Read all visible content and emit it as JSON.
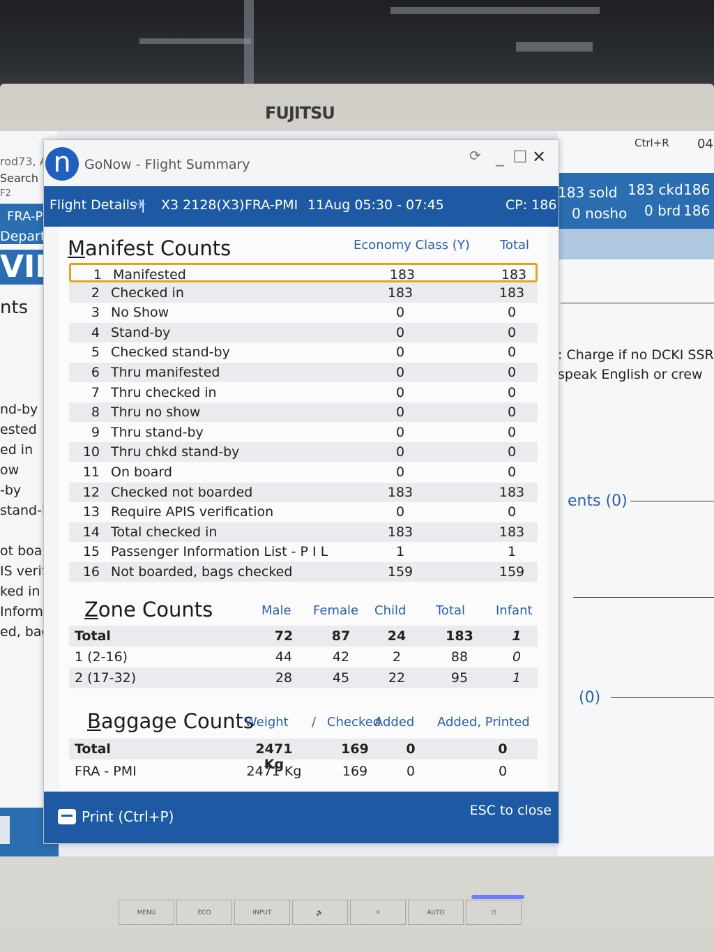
{
  "monitor": {
    "brand": "FUJITSU",
    "buttons": [
      "MENU",
      "ECO",
      "INPUT",
      "🔈",
      "☼",
      "AUTO",
      "⏻"
    ]
  },
  "background_app": {
    "left": {
      "top_text": "rod73, A",
      "search": "Search",
      "f2": "F2",
      "route": "FRA-P",
      "depart": "Depart",
      "big": "VIE",
      "nts": "nts",
      "lines": [
        "nd-by",
        "ested",
        "ed in",
        "ow",
        "-by",
        "stand-by",
        "",
        "ot boarde",
        "IS verific",
        "ked in",
        "Informat",
        "ed, bags c"
      ]
    },
    "right": {
      "ctrl_r": "Ctrl+R",
      "top_num": "04",
      "sold": "183 sold",
      "ckd": "183 ckd",
      "ckd_val": "186",
      "nosho": "0 nosho",
      "brd": "0 brd",
      "brd_val": "186",
      "note1": ": Charge if no DCKI SSR.",
      "note2": "speak English or crew",
      "link1": "ents (0)",
      "link2": "(0)"
    }
  },
  "dialog": {
    "logo": "n",
    "title": "GoNow - Flight Summary",
    "window_controls": [
      "⟳",
      "_",
      "☐",
      "✕"
    ],
    "header": {
      "label": "Flight Details |",
      "flight": "X3 2128(X3)",
      "route": "FRA-PMI",
      "date_time": "11Aug 05:30 - 07:45",
      "cp": "CP: 186"
    },
    "manifest": {
      "title": "Manifest Counts",
      "col1": "Economy Class (Y)",
      "col2": "Total",
      "rows": [
        {
          "n": "1",
          "label": "Manifested",
          "y": "183",
          "total": "183"
        },
        {
          "n": "2",
          "label": "Checked in",
          "y": "183",
          "total": "183"
        },
        {
          "n": "3",
          "label": "No Show",
          "y": "0",
          "total": "0"
        },
        {
          "n": "4",
          "label": "Stand-by",
          "y": "0",
          "total": "0"
        },
        {
          "n": "5",
          "label": "Checked stand-by",
          "y": "0",
          "total": "0"
        },
        {
          "n": "6",
          "label": "Thru manifested",
          "y": "0",
          "total": "0"
        },
        {
          "n": "7",
          "label": "Thru checked in",
          "y": "0",
          "total": "0"
        },
        {
          "n": "8",
          "label": "Thru no show",
          "y": "0",
          "total": "0"
        },
        {
          "n": "9",
          "label": "Thru stand-by",
          "y": "0",
          "total": "0"
        },
        {
          "n": "10",
          "label": "Thru chkd stand-by",
          "y": "0",
          "total": "0"
        },
        {
          "n": "11",
          "label": "On board",
          "y": "0",
          "total": "0"
        },
        {
          "n": "12",
          "label": "Checked not boarded",
          "y": "183",
          "total": "183"
        },
        {
          "n": "13",
          "label": "Require APIS verification",
          "y": "0",
          "total": "0"
        },
        {
          "n": "14",
          "label": "Total checked in",
          "y": "183",
          "total": "183"
        },
        {
          "n": "15",
          "label": "Passenger Information List - P I L",
          "y": "1",
          "total": "1"
        },
        {
          "n": "16",
          "label": "Not boarded, bags checked",
          "y": "159",
          "total": "159"
        }
      ]
    },
    "zone": {
      "title": "Zone Counts",
      "cols": [
        "Male",
        "Female",
        "Child",
        "Total",
        "Infant"
      ],
      "rows": [
        {
          "label": "Total",
          "male": "72",
          "female": "87",
          "child": "24",
          "total": "183",
          "infant": "1"
        },
        {
          "label": "1 (2-16)",
          "male": "44",
          "female": "42",
          "child": "2",
          "total": "88",
          "infant": "0"
        },
        {
          "label": "2 (17-32)",
          "male": "28",
          "female": "45",
          "child": "22",
          "total": "95",
          "infant": "1"
        }
      ]
    },
    "baggage": {
      "title": "Baggage Counts",
      "cols": [
        "Weight",
        "/",
        "Checked",
        "Added",
        "Added, Printed"
      ],
      "rows": [
        {
          "label": "Total",
          "weight": "2471 Kg",
          "checked": "169",
          "added": "0",
          "printed": "0"
        },
        {
          "label": "FRA - PMI",
          "weight": "2471 Kg",
          "checked": "169",
          "added": "0",
          "printed": "0"
        }
      ]
    },
    "footer": {
      "print": "Print (Ctrl+P)",
      "esc": "ESC to close"
    }
  }
}
